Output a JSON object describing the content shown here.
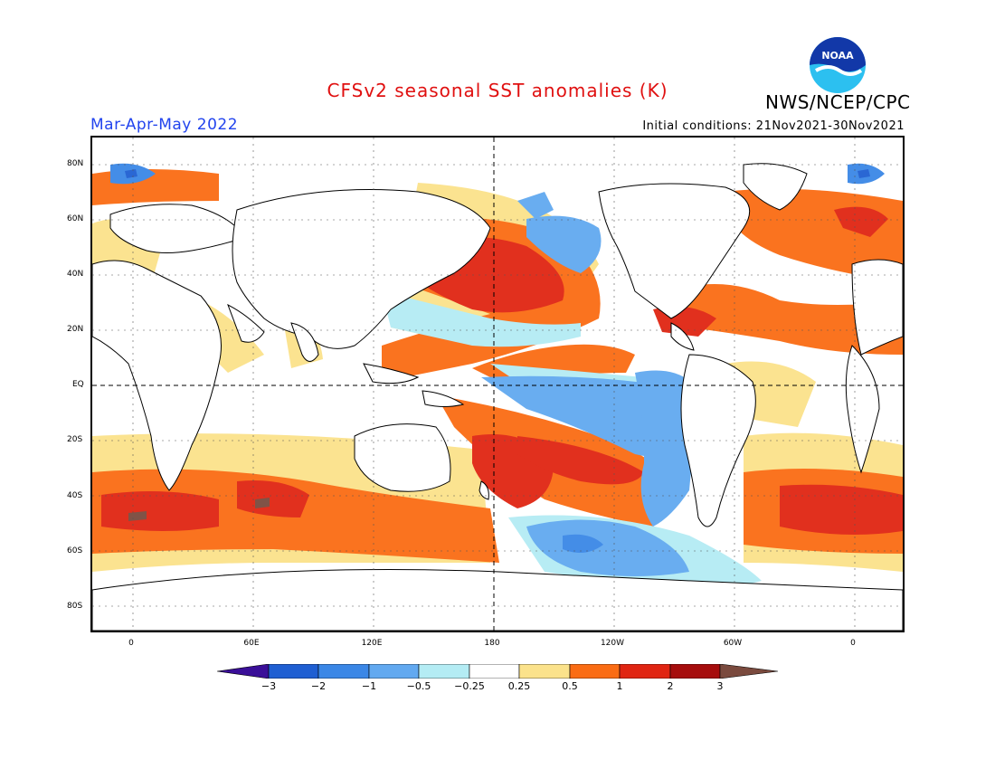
{
  "header": {
    "title": "CFSv2 seasonal SST anomalies (K)",
    "agency": "NWS/NCEP/CPC",
    "season": "Mar-Apr-May 2022",
    "initial_conditions": "Initial conditions: 21Nov2021-30Nov2021",
    "logo_text": "NOAA"
  },
  "map": {
    "lat_labels": [
      "80N",
      "60N",
      "40N",
      "20N",
      "EQ",
      "20S",
      "40S",
      "60S",
      "80S"
    ],
    "lon_labels": [
      "0",
      "60E",
      "120E",
      "180",
      "120W",
      "60W",
      "0"
    ]
  },
  "colorbar": {
    "tick_labels": [
      "-3",
      "-2",
      "-1",
      "-0.5",
      "-0.25",
      "0.25",
      "0.5",
      "1",
      "2",
      "3"
    ],
    "colors": [
      "#3a0f98",
      "#1f5fd2",
      "#3b87e6",
      "#62a9f0",
      "#b4ecf4",
      "#ffffff",
      "#fbe28b",
      "#fa6c14",
      "#e02512",
      "#a60d0d",
      "#7a4a3e"
    ]
  }
}
